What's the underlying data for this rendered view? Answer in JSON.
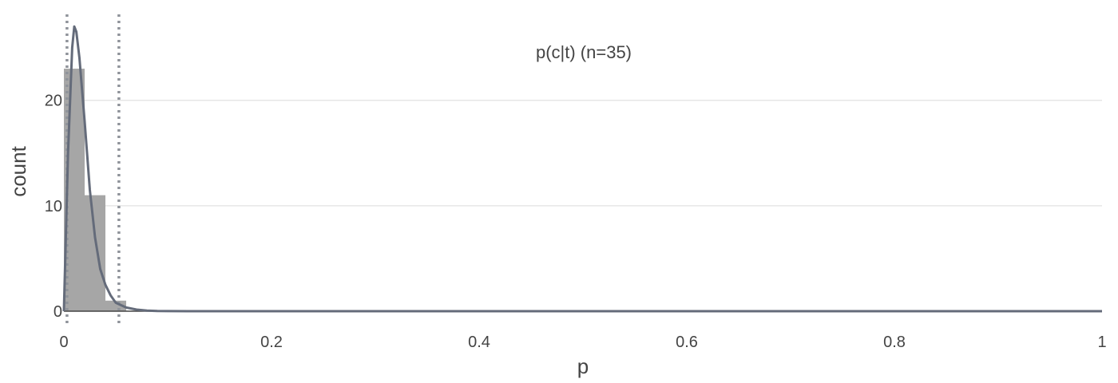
{
  "chart_data": {
    "type": "histogram",
    "xlabel": "p",
    "ylabel": "count",
    "xlim": [
      0,
      1
    ],
    "ylim": [
      0,
      28
    ],
    "x_ticks": [
      {
        "value": 0,
        "label": "0"
      },
      {
        "value": 0.2,
        "label": "0.2"
      },
      {
        "value": 0.4,
        "label": "0.4"
      },
      {
        "value": 0.6,
        "label": "0.6"
      },
      {
        "value": 0.8,
        "label": "0.8"
      },
      {
        "value": 1,
        "label": "1"
      }
    ],
    "y_ticks": [
      {
        "value": 0,
        "label": "0"
      },
      {
        "value": 10,
        "label": "10"
      },
      {
        "value": 20,
        "label": "20"
      }
    ],
    "grid": "horizontal",
    "legend": "none",
    "annotation": "p(c|t) (n=35)",
    "bins": [
      {
        "x0": 0.0,
        "x1": 0.02,
        "count": 23
      },
      {
        "x0": 0.02,
        "x1": 0.04,
        "count": 11
      },
      {
        "x0": 0.04,
        "x1": 0.06,
        "count": 1
      }
    ],
    "density_curve": {
      "x": [
        0.0,
        0.004,
        0.008,
        0.01,
        0.012,
        0.015,
        0.02,
        0.025,
        0.03,
        0.035,
        0.04,
        0.045,
        0.05,
        0.06,
        0.07,
        0.08,
        0.09,
        0.1,
        0.12,
        0.15,
        0.2,
        0.3,
        0.5,
        0.7,
        1.0
      ],
      "y": [
        0,
        15,
        25,
        27,
        26.5,
        24,
        18,
        11.5,
        7,
        4,
        2.5,
        1.5,
        0.8,
        0.35,
        0.15,
        0.06,
        0.02,
        0.01,
        0,
        0,
        0,
        0,
        0,
        0,
        0
      ]
    },
    "reference_lines_x": [
      0.003,
      0.053
    ],
    "colors": {
      "bars": "#a6a6a6",
      "curve": "#646b7a",
      "reference_lines": "#8f939a",
      "grid": "#e6e6e6",
      "zero_line": "#444444",
      "text": "#444444"
    }
  }
}
